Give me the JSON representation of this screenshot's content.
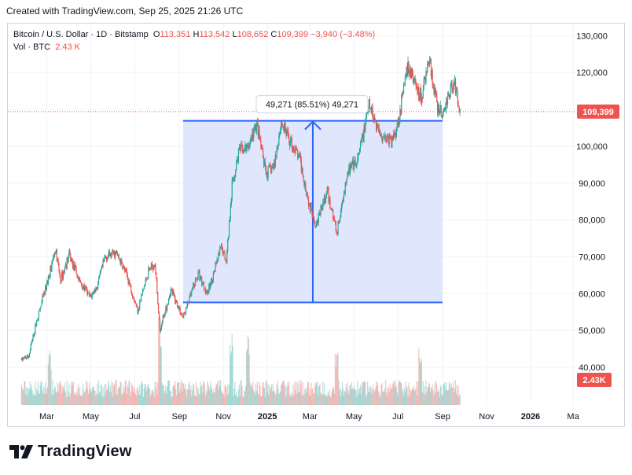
{
  "header": {
    "created_note": "Created with TradingView.com, Sep 25, 2025 21:26 UTC"
  },
  "legend": {
    "symbol": "Bitcoin / U.S. Dollar · 1D · Bitstamp",
    "open_label": "O",
    "open": "113,351",
    "high_label": "H",
    "high": "113,542",
    "low_label": "L",
    "low": "108,652",
    "close_label": "C",
    "close": "109,399",
    "change": "−3,940 (−3.48%)",
    "volume_label": "Vol · BTC",
    "volume": "2.43 K"
  },
  "measure": {
    "label": "49,271 (85.51%) 49,271"
  },
  "price_badge": "109,399",
  "volume_badge": "2.43K",
  "brand": {
    "name": "TradingView"
  },
  "colors": {
    "up": "#26a69a",
    "down": "#ef5350",
    "accent": "#2962ff",
    "range_fill": "#dbe3fd"
  },
  "chart_data": {
    "type": "candlestick",
    "symbol": "BTCUSD",
    "interval": "1D",
    "y_axis": {
      "ticks": [
        40000,
        50000,
        60000,
        70000,
        80000,
        90000,
        100000,
        110000,
        120000,
        130000
      ],
      "tick_labels": [
        "40,000",
        "50,000",
        "60,000",
        "70,000",
        "80,000",
        "90,000",
        "100,000",
        "110,000",
        "120,000",
        "130,000"
      ],
      "range": [
        37000,
        132000
      ]
    },
    "x_axis": {
      "tick_labels": [
        "Mar",
        "May",
        "Jul",
        "Sep",
        "Nov",
        "2025",
        "Mar",
        "May",
        "Jul",
        "Sep",
        "Nov",
        "2026",
        "Ma"
      ],
      "tick_dates": [
        "2024-03-01",
        "2024-05-01",
        "2024-07-01",
        "2024-09-01",
        "2024-11-01",
        "2025-01-01",
        "2025-03-01",
        "2025-05-01",
        "2025-07-01",
        "2025-09-01",
        "2025-11-01",
        "2026-01-01",
        "2026-03-01"
      ],
      "range": [
        "2024-01-25",
        "2026-03-20"
      ]
    },
    "price_path": [
      [
        "2024-01-26",
        42000
      ],
      [
        "2024-02-05",
        43000
      ],
      [
        "2024-02-15",
        51800
      ],
      [
        "2024-02-28",
        61000
      ],
      [
        "2024-03-13",
        72000
      ],
      [
        "2024-03-20",
        63500
      ],
      [
        "2024-04-01",
        70500
      ],
      [
        "2024-04-15",
        63500
      ],
      [
        "2024-04-30",
        59000
      ],
      [
        "2024-05-10",
        62000
      ],
      [
        "2024-05-21",
        70000
      ],
      [
        "2024-06-05",
        71000
      ],
      [
        "2024-06-20",
        65000
      ],
      [
        "2024-07-05",
        55500
      ],
      [
        "2024-07-20",
        66000
      ],
      [
        "2024-07-29",
        68500
      ],
      [
        "2024-08-05",
        50000
      ],
      [
        "2024-08-20",
        61000
      ],
      [
        "2024-09-06",
        53500
      ],
      [
        "2024-09-27",
        65500
      ],
      [
        "2024-10-10",
        60000
      ],
      [
        "2024-10-29",
        72500
      ],
      [
        "2024-11-05",
        69000
      ],
      [
        "2024-11-13",
        89000
      ],
      [
        "2024-11-22",
        98500
      ],
      [
        "2024-12-05",
        99500
      ],
      [
        "2024-12-17",
        106000
      ],
      [
        "2024-12-30",
        92500
      ],
      [
        "2025-01-10",
        94500
      ],
      [
        "2025-01-20",
        106500
      ],
      [
        "2025-01-31",
        102000
      ],
      [
        "2025-02-15",
        96500
      ],
      [
        "2025-02-28",
        84000
      ],
      [
        "2025-03-10",
        79000
      ],
      [
        "2025-03-25",
        87500
      ],
      [
        "2025-04-08",
        76500
      ],
      [
        "2025-04-22",
        93500
      ],
      [
        "2025-05-05",
        95000
      ],
      [
        "2025-05-22",
        111000
      ],
      [
        "2025-06-05",
        104000
      ],
      [
        "2025-06-22",
        101000
      ],
      [
        "2025-07-01",
        106500
      ],
      [
        "2025-07-14",
        121000
      ],
      [
        "2025-07-22",
        118500
      ],
      [
        "2025-08-02",
        113000
      ],
      [
        "2025-08-13",
        123500
      ],
      [
        "2025-08-25",
        110000
      ],
      [
        "2025-09-01",
        108500
      ],
      [
        "2025-09-13",
        116000
      ],
      [
        "2025-09-18",
        117000
      ],
      [
        "2025-09-25",
        109399
      ]
    ],
    "last_price": 109399,
    "last_price_line": true,
    "measure_range": {
      "start_date": "2024-09-06",
      "end_date": "2025-09-01",
      "low": 57620,
      "high": 106891,
      "change": 49271,
      "change_pct": 85.51,
      "bars": 49271
    },
    "volume": {
      "series_name": "Vol · BTC",
      "last": "2.43 K",
      "spikes": [
        [
          "2024-03-05",
          1.8
        ],
        [
          "2024-08-05",
          2.9
        ],
        [
          "2024-11-12",
          2.6
        ],
        [
          "2024-12-05",
          2.4
        ],
        [
          "2025-04-07",
          2.0
        ],
        [
          "2025-08-01",
          2.2
        ]
      ]
    },
    "grid": true
  }
}
